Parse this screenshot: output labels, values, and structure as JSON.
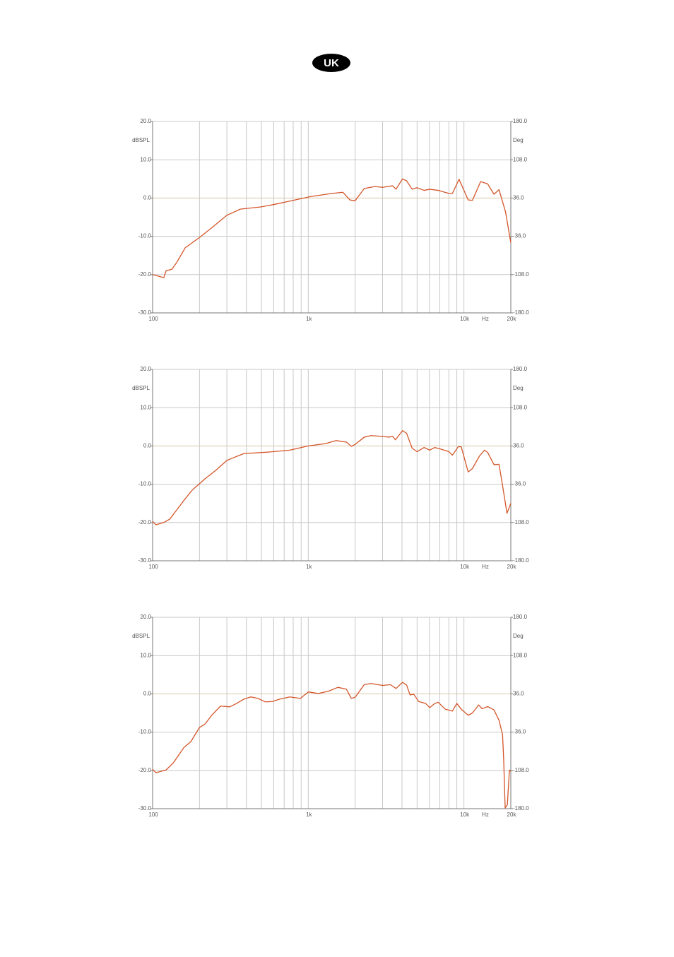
{
  "header": {
    "badge": "UK"
  },
  "chart_data": [
    {
      "type": "line",
      "xscale": "log",
      "grid": true,
      "xlabel": "Hz",
      "ylabel": "dBSPL",
      "y2label": "Deg",
      "xlim": [
        100,
        20000
      ],
      "xticks": [
        100,
        {
          "value": 1000,
          "label": "1k"
        },
        {
          "value": 10000,
          "label": "10k"
        },
        {
          "value": 20000,
          "label": "20k"
        }
      ],
      "ylim": [
        -30,
        20
      ],
      "yticks": [
        {
          "value": 20,
          "label": "20.0"
        },
        {
          "value": 10,
          "label": "10.0"
        },
        {
          "value": 0,
          "label": "0.0"
        },
        {
          "value": -10,
          "label": "-10.0"
        },
        {
          "value": -20,
          "label": "-20.0"
        },
        {
          "value": -30,
          "label": "-30.0"
        }
      ],
      "y2lim": [
        -180,
        180
      ],
      "y2ticks": [
        {
          "value": 180,
          "label": "180.0"
        },
        {
          "value": 108,
          "label": "108.0"
        },
        {
          "value": 36,
          "label": "36.0"
        },
        {
          "value": -36,
          "label": "-36.0"
        },
        {
          "value": -108,
          "label": "-108.0"
        },
        {
          "value": -180,
          "label": "-180.0"
        }
      ],
      "x": [
        100,
        118,
        122,
        133,
        143,
        162,
        200,
        241,
        300,
        366,
        500,
        617,
        760,
        1040,
        1420,
        1670,
        1850,
        2000,
        2290,
        2680,
        3000,
        3480,
        3660,
        4030,
        4280,
        4650,
        5000,
        5550,
        6030,
        6830,
        8000,
        8430,
        9300,
        10650,
        11340,
        12800,
        14200,
        15600,
        16800,
        18500,
        20000
      ],
      "series": [
        {
          "color": "#d4562a",
          "values": [
            -20,
            -20.8,
            -19,
            -18.6,
            -16.8,
            -13,
            -10.3,
            -7.7,
            -4.5,
            -2.9,
            -2.3,
            -1.6,
            -0.8,
            0.4,
            1.2,
            1.5,
            -0.5,
            -0.7,
            2.5,
            3,
            2.8,
            3.2,
            2.3,
            5,
            4.5,
            2.3,
            2.7,
            2,
            2.3,
            2,
            1.2,
            1.2,
            4.9,
            -0.5,
            -0.6,
            4.3,
            3.7,
            1,
            2.2,
            -3.6,
            -11.7
          ]
        }
      ]
    },
    {
      "type": "line",
      "xscale": "log",
      "grid": true,
      "xlabel": "Hz",
      "ylabel": "dBSPL",
      "y2label": "Deg",
      "xlim": [
        100,
        20000
      ],
      "xticks": [
        100,
        {
          "value": 1000,
          "label": "1k"
        },
        {
          "value": 10000,
          "label": "10k"
        },
        {
          "value": 20000,
          "label": "20k"
        }
      ],
      "ylim": [
        -30,
        20
      ],
      "yticks": [
        {
          "value": 20,
          "label": "20.0"
        },
        {
          "value": 10,
          "label": "10.0"
        },
        {
          "value": 0,
          "label": "0.0"
        },
        {
          "value": -10,
          "label": "-10.0"
        },
        {
          "value": -20,
          "label": "-20.0"
        },
        {
          "value": -30,
          "label": "-30.0"
        }
      ],
      "y2lim": [
        -180,
        180
      ],
      "y2ticks": [
        {
          "value": 180,
          "label": "180.0"
        },
        {
          "value": 108,
          "label": "108.0"
        },
        {
          "value": 36,
          "label": "36.0"
        },
        {
          "value": -36,
          "label": "-36.0"
        },
        {
          "value": -108,
          "label": "-108.0"
        },
        {
          "value": -180,
          "label": "-180.0"
        }
      ],
      "x": [
        100,
        105,
        118,
        129,
        143,
        162,
        180,
        217,
        254,
        300,
        330,
        385,
        557,
        760,
        1000,
        1290,
        1510,
        1760,
        1890,
        2000,
        2290,
        2530,
        3000,
        3300,
        3480,
        3630,
        4030,
        4280,
        4650,
        5000,
        5550,
        6030,
        6500,
        7200,
        8000,
        8430,
        9200,
        9600,
        10650,
        11340,
        12600,
        13550,
        14200,
        15600,
        16800,
        17700,
        18900,
        20000
      ],
      "series": [
        {
          "color": "#d4562a",
          "values": [
            -19.7,
            -20.6,
            -20,
            -19.1,
            -16.7,
            -13.8,
            -11.5,
            -8.6,
            -6.4,
            -3.8,
            -3.1,
            -2,
            -1.6,
            -1.1,
            0,
            0.6,
            1.4,
            1,
            -0.1,
            0.4,
            2.3,
            2.7,
            2.5,
            2.3,
            2.5,
            1.6,
            4,
            3.3,
            -0.6,
            -1.5,
            -0.4,
            -1.1,
            -0.4,
            -0.9,
            -1.5,
            -2.4,
            -0.2,
            -0.2,
            -6.8,
            -5.9,
            -2.6,
            -1.1,
            -1.7,
            -4.9,
            -4.8,
            -10.3,
            -17.6,
            -15
          ]
        }
      ]
    },
    {
      "type": "line",
      "xscale": "log",
      "grid": true,
      "xlabel": "Hz",
      "ylabel": "dBSPL",
      "y2label": "Deg",
      "xlim": [
        100,
        20000
      ],
      "xticks": [
        100,
        {
          "value": 1000,
          "label": "1k"
        },
        {
          "value": 10000,
          "label": "10k"
        },
        {
          "value": 20000,
          "label": "20k"
        }
      ],
      "ylim": [
        -30,
        20
      ],
      "yticks": [
        {
          "value": 20,
          "label": "20.0"
        },
        {
          "value": 10,
          "label": "10.0"
        },
        {
          "value": 0,
          "label": "0.0"
        },
        {
          "value": -10,
          "label": "-10.0"
        },
        {
          "value": -20,
          "label": "-20.0"
        },
        {
          "value": -30,
          "label": "-30.0"
        }
      ],
      "y2lim": [
        -180,
        180
      ],
      "y2ticks": [
        {
          "value": 180,
          "label": "180.0"
        },
        {
          "value": 108,
          "label": "108.0"
        },
        {
          "value": 36,
          "label": "36.0"
        },
        {
          "value": -36,
          "label": "-36.0"
        },
        {
          "value": -108,
          "label": "-108.0"
        },
        {
          "value": -180,
          "label": "-180.0"
        }
      ],
      "x": [
        100,
        105,
        122,
        136,
        159,
        176,
        200,
        217,
        241,
        273,
        313,
        347,
        385,
        428,
        476,
        529,
        588,
        653,
        760,
        890,
        1000,
        1160,
        1350,
        1550,
        1760,
        1890,
        2000,
        2290,
        2530,
        3000,
        3370,
        3660,
        4030,
        4280,
        4510,
        4760,
        5120,
        5670,
        6030,
        6500,
        6830,
        7580,
        8430,
        9000,
        9600,
        10650,
        11340,
        12430,
        13080,
        14200,
        15600,
        16800,
        17700,
        18000,
        18400,
        19000,
        19600,
        20000
      ],
      "series": [
        {
          "color": "#d4562a",
          "values": [
            -19.7,
            -20.6,
            -19.9,
            -18,
            -14,
            -12.5,
            -8.8,
            -7.9,
            -5.5,
            -3.2,
            -3.4,
            -2.5,
            -1.4,
            -0.8,
            -1.2,
            -2.1,
            -2,
            -1.4,
            -0.8,
            -1.2,
            0.5,
            0.1,
            0.7,
            1.7,
            1.2,
            -1.2,
            -0.9,
            2.4,
            2.7,
            2.2,
            2.4,
            1.4,
            3,
            2.3,
            -0.3,
            -0.1,
            -2,
            -2.5,
            -3.6,
            -2.5,
            -2.2,
            -4,
            -4.5,
            -2.5,
            -4,
            -5.6,
            -5,
            -2.9,
            -3.9,
            -3.3,
            -4.2,
            -6.9,
            -10.6,
            -17.1,
            -29.8,
            -29,
            -19.9,
            -20.3
          ]
        }
      ]
    }
  ]
}
